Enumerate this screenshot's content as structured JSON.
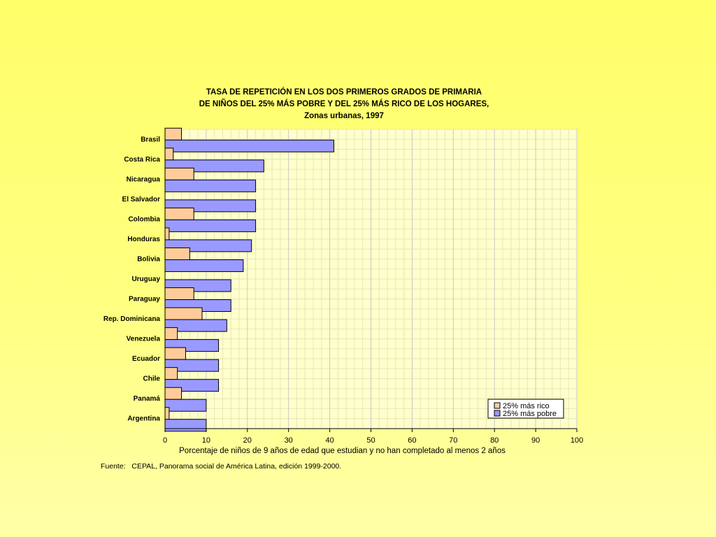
{
  "chart_data": {
    "type": "bar",
    "orientation": "horizontal",
    "title_lines": [
      "TASA DE REPETICIÓN EN LOS DOS PRIMEROS GRADOS DE PRIMARIA",
      "DE NIÑOS DEL 25% MÁS POBRE Y DEL 25% MÁS RICO DE LOS HOGARES,",
      "Zonas urbanas, 1997"
    ],
    "xlabel": "Porcentaje de niños de 9 años de edad que estudian y no han completado al menos 2 años",
    "ylabel": "",
    "xlim": [
      0,
      100
    ],
    "xticks": [
      0,
      10,
      20,
      30,
      40,
      50,
      60,
      70,
      80,
      90,
      100
    ],
    "grid": true,
    "legend_position": "bottom-right",
    "categories": [
      "Brasil",
      "Costa Rica",
      "Nicaragua",
      "El Salvador",
      "Colombia",
      "Honduras",
      "Bolivia",
      "Uruguay",
      "Paraguay",
      "Rep. Dominicana",
      "Venezuela",
      "Ecuador",
      "Chile",
      "Panamá",
      "Argentina"
    ],
    "series": [
      {
        "name": "25% más rico",
        "color": "#ffcc99",
        "values": [
          4,
          2,
          7,
          0,
          7,
          1,
          6,
          0,
          7,
          9,
          3,
          5,
          3,
          4,
          1
        ]
      },
      {
        "name": "25% más pobre",
        "color": "#9999ff",
        "values": [
          41,
          24,
          22,
          22,
          22,
          21,
          19,
          16,
          16,
          15,
          13,
          13,
          13,
          10,
          10
        ]
      }
    ]
  },
  "source": {
    "label": "Fuente:",
    "text": "CEPAL, Panorama social de América Latina, edición 1999-2000."
  }
}
